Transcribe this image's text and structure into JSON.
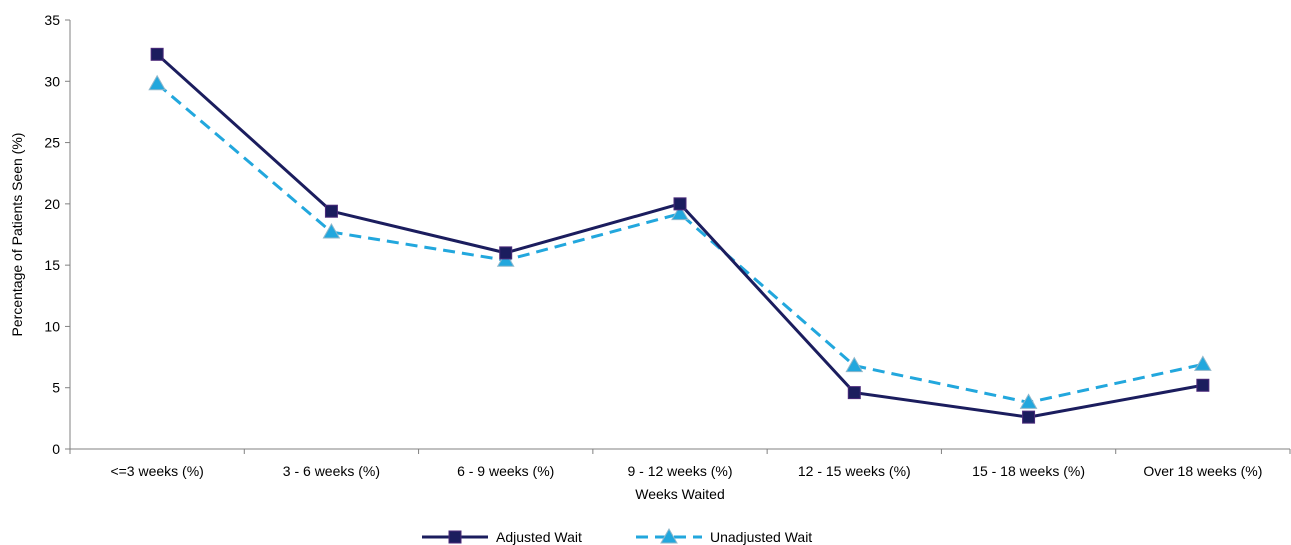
{
  "chart_data": {
    "type": "line",
    "title": "",
    "xlabel": "Weeks Waited",
    "ylabel": "Percentage of Patients Seen (%)",
    "categories": [
      "<=3 weeks  (%)",
      "3 - 6 weeks  (%)",
      "6 - 9 weeks  (%)",
      "9 - 12 weeks  (%)",
      "12 - 15 weeks  (%)",
      "15 - 18 weeks  (%)",
      "Over 18 weeks  (%)"
    ],
    "ylim": [
      0,
      35
    ],
    "yticks": [
      0,
      5,
      10,
      15,
      20,
      25,
      30,
      35
    ],
    "grid": false,
    "legend_position": "bottom",
    "series": [
      {
        "name": "Adjusted Wait",
        "values": [
          32.2,
          19.4,
          16.0,
          20.0,
          4.6,
          2.6,
          5.2
        ],
        "color": "#1b1d5e",
        "marker": "square",
        "line_style": "solid"
      },
      {
        "name": "Unadjusted Wait",
        "values": [
          29.8,
          17.7,
          15.4,
          19.2,
          6.8,
          3.8,
          6.9
        ],
        "color": "#22a7dd",
        "marker": "triangle",
        "line_style": "dashed"
      }
    ]
  }
}
